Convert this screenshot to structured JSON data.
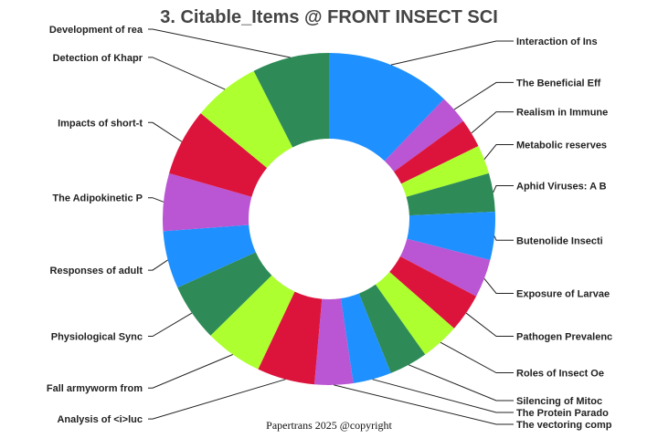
{
  "chart_data": {
    "type": "pie",
    "donut": true,
    "title": "3. Citable_Items @ FRONT INSECT SCI",
    "footer": "Papertrans 2025 @copyright",
    "colors": {
      "blue": "#1E90FF",
      "purple": "#BA55D3",
      "red": "#DC143C",
      "lime": "#ADFF2F",
      "green": "#2E8B57"
    },
    "slices": [
      {
        "label": "Interaction of Ins",
        "value": 13,
        "color": "#1E90FF"
      },
      {
        "label": "The Beneficial Eff",
        "value": 3,
        "color": "#BA55D3"
      },
      {
        "label": "Realism in Immune",
        "value": 3,
        "color": "#DC143C"
      },
      {
        "label": "Metabolic reserves",
        "value": 3,
        "color": "#ADFF2F"
      },
      {
        "label": "Aphid Viruses: A B",
        "value": 4,
        "color": "#2E8B57"
      },
      {
        "label": "Butenolide Insecti",
        "value": 5,
        "color": "#1E90FF"
      },
      {
        "label": "Exposure of Larvae",
        "value": 4,
        "color": "#BA55D3"
      },
      {
        "label": "Pathogen Prevalenc",
        "value": 4,
        "color": "#DC143C"
      },
      {
        "label": "Roles of Insect Oe",
        "value": 4,
        "color": "#ADFF2F"
      },
      {
        "label": "Silencing of Mitoc",
        "value": 4,
        "color": "#2E8B57"
      },
      {
        "label": "The Protein Parado",
        "value": 4,
        "color": "#1E90FF"
      },
      {
        "label": "The vectoring comp",
        "value": 4,
        "color": "#BA55D3"
      },
      {
        "label": "Analysis of <i>luc",
        "value": 6,
        "color": "#DC143C"
      },
      {
        "label": "Fall armyworm from",
        "value": 6,
        "color": "#ADFF2F"
      },
      {
        "label": "Physiological Sync",
        "value": 6,
        "color": "#2E8B57"
      },
      {
        "label": "Responses of adult",
        "value": 6,
        "color": "#1E90FF"
      },
      {
        "label": "The Adipokinetic P",
        "value": 6,
        "color": "#BA55D3"
      },
      {
        "label": "Impacts of short-t",
        "value": 7,
        "color": "#DC143C"
      },
      {
        "label": "Detection of Khapr",
        "value": 7,
        "color": "#ADFF2F"
      },
      {
        "label": "Development of rea",
        "value": 8,
        "color": "#2E8B57"
      }
    ]
  }
}
